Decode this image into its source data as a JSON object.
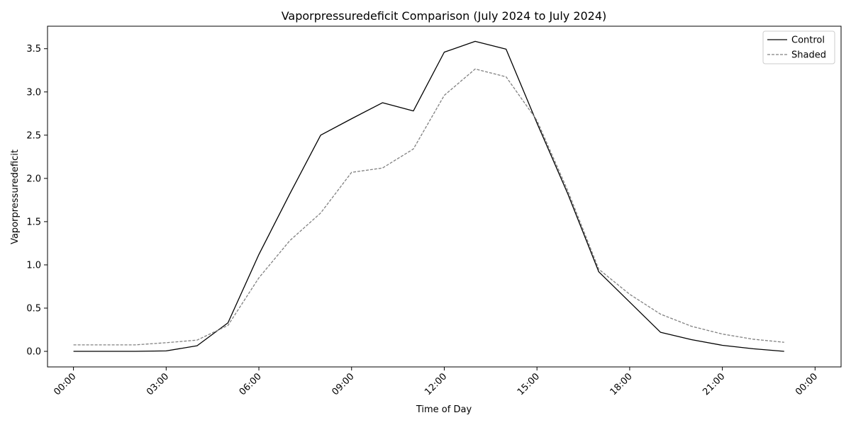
{
  "chart_data": {
    "type": "line",
    "title": "Vaporpressuredeficit Comparison (July 2024 to July 2024)",
    "xlabel": "Time of Day",
    "ylabel": "Vaporpressuredeficit",
    "xlim": [
      "00:00",
      "23:59"
    ],
    "ylim": [
      -0.18,
      3.76
    ],
    "x_ticks": [
      "00:00",
      "03:00",
      "06:00",
      "09:00",
      "12:00",
      "15:00",
      "18:00",
      "21:00",
      "00:00"
    ],
    "y_ticks": [
      "0.0",
      "0.5",
      "1.0",
      "1.5",
      "2.0",
      "2.5",
      "3.0",
      "3.5"
    ],
    "x": [
      "00:00",
      "01:00",
      "02:00",
      "03:00",
      "04:00",
      "05:00",
      "06:00",
      "07:00",
      "08:00",
      "09:00",
      "10:00",
      "11:00",
      "12:00",
      "13:00",
      "14:00",
      "15:00",
      "16:00",
      "17:00",
      "18:00",
      "19:00",
      "20:00",
      "21:00",
      "22:00",
      "23:00"
    ],
    "series": [
      {
        "name": "Control",
        "color": "#000000",
        "line_style": "solid",
        "values": [
          0.0,
          0.0,
          0.0,
          0.005,
          0.065,
          0.33,
          1.12,
          1.82,
          2.5,
          2.69,
          2.875,
          2.78,
          3.46,
          3.585,
          3.495,
          2.64,
          1.82,
          0.92,
          0.57,
          0.22,
          0.135,
          0.07,
          0.03,
          0.0
        ]
      },
      {
        "name": "Shaded",
        "color": "#808080",
        "line_style": "dashed",
        "values": [
          0.075,
          0.075,
          0.075,
          0.1,
          0.13,
          0.3,
          0.85,
          1.28,
          1.6,
          2.07,
          2.12,
          2.34,
          2.96,
          3.265,
          3.175,
          2.67,
          1.855,
          0.95,
          0.66,
          0.43,
          0.29,
          0.2,
          0.14,
          0.105
        ]
      }
    ],
    "grid": false,
    "legend_position": "top-right"
  }
}
